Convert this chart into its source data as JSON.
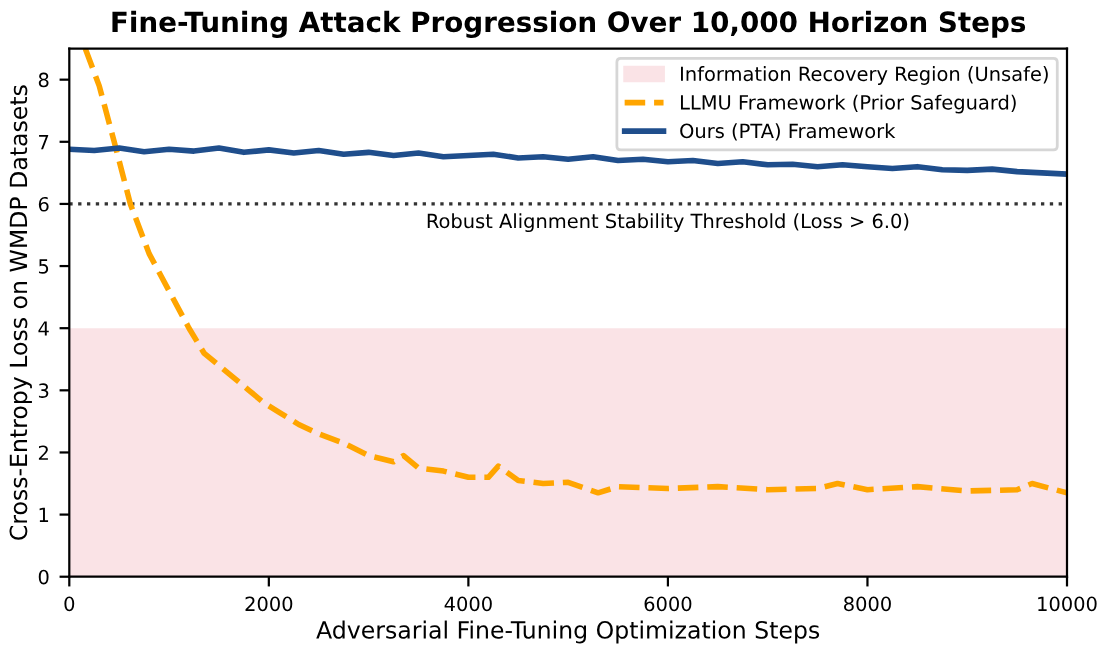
{
  "chart_data": {
    "type": "line",
    "title": "Fine-Tuning Attack Progression Over 10,000 Horizon Steps",
    "xlabel": "Adversarial Fine-Tuning Optimization Steps",
    "ylabel": "Cross-Entropy Loss on WMDP Datasets",
    "xlim": [
      0,
      10000
    ],
    "xticks": [
      0,
      2000,
      4000,
      6000,
      8000,
      10000
    ],
    "ylim": [
      0,
      8.5
    ],
    "yticks": [
      0,
      1,
      2,
      3,
      4,
      5,
      6,
      7,
      8
    ],
    "grid": false,
    "legend": "top right",
    "bands": [
      {
        "axis": "y",
        "from": 0,
        "to": 4,
        "label": "Information Recovery Region (Unsafe)",
        "color": "#fae3e6"
      }
    ],
    "ref_lines": [
      {
        "axis": "y",
        "value": 6,
        "label": "Robust Alignment Stability Threshold (Loss > 6.0)",
        "color": "#333333",
        "line_style": "dotted"
      }
    ],
    "series": [
      {
        "name": "LLMU Framework (Prior Safeguard)",
        "color": "#ffa500",
        "line_style": "dashed",
        "x": [
          160,
          300,
          450,
          612,
          800,
          1000,
          1200,
          1350,
          1500,
          1650,
          1800,
          1950,
          2100,
          2300,
          2500,
          2750,
          3000,
          3250,
          3350,
          3500,
          3750,
          4000,
          4200,
          4300,
          4500,
          4750,
          5000,
          5300,
          5500,
          6000,
          6500,
          7000,
          7500,
          7700,
          8000,
          8500,
          9000,
          9500,
          9650,
          10000
        ],
        "values": [
          8.5,
          7.9,
          7.0,
          6.0,
          5.2,
          4.6,
          4.0,
          3.6,
          3.4,
          3.2,
          3.0,
          2.8,
          2.65,
          2.45,
          2.3,
          2.15,
          1.95,
          1.85,
          1.95,
          1.75,
          1.7,
          1.6,
          1.6,
          1.78,
          1.55,
          1.5,
          1.52,
          1.35,
          1.45,
          1.42,
          1.45,
          1.4,
          1.42,
          1.5,
          1.4,
          1.45,
          1.38,
          1.4,
          1.5,
          1.35
        ]
      },
      {
        "name": "Ours (PTA) Framework",
        "color": "#1f4e8c",
        "line_style": "solid",
        "x": [
          0,
          250,
          500,
          750,
          1000,
          1250,
          1500,
          1750,
          2000,
          2250,
          2500,
          2750,
          3000,
          3250,
          3500,
          3750,
          4000,
          4250,
          4500,
          4750,
          5000,
          5250,
          5500,
          5750,
          6000,
          6250,
          6500,
          6750,
          7000,
          7250,
          7500,
          7750,
          8000,
          8250,
          8500,
          8750,
          9000,
          9250,
          9500,
          9750,
          10000
        ],
        "values": [
          6.88,
          6.86,
          6.9,
          6.84,
          6.88,
          6.85,
          6.9,
          6.83,
          6.87,
          6.82,
          6.86,
          6.8,
          6.83,
          6.78,
          6.82,
          6.76,
          6.78,
          6.8,
          6.74,
          6.76,
          6.72,
          6.76,
          6.7,
          6.72,
          6.68,
          6.7,
          6.65,
          6.68,
          6.63,
          6.64,
          6.6,
          6.63,
          6.6,
          6.57,
          6.6,
          6.55,
          6.54,
          6.56,
          6.52,
          6.5,
          6.48
        ]
      }
    ]
  }
}
